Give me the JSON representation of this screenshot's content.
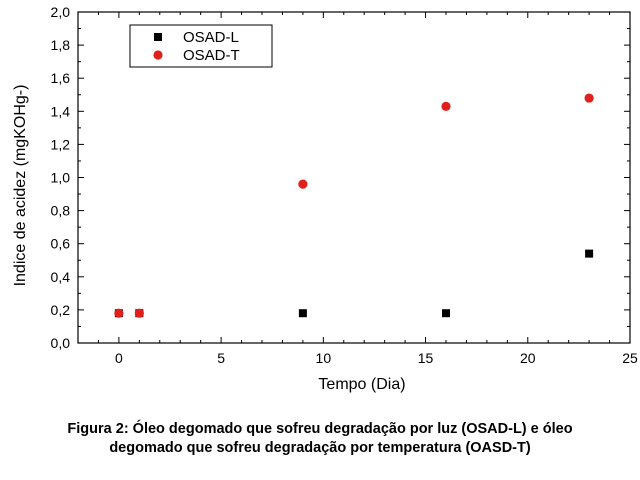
{
  "chart_data": {
    "type": "scatter",
    "xlabel": "Tempo (Dia)",
    "ylabel": "Indice de acidez (mgKOHg-)",
    "xlim": [
      -2,
      25
    ],
    "ylim": [
      0,
      2.0
    ],
    "xticks": [
      0,
      5,
      10,
      15,
      20,
      25
    ],
    "xtick_labels": [
      "0",
      "5",
      "10",
      "15",
      "20",
      "25"
    ],
    "yticks": [
      0,
      0.2,
      0.4,
      0.6,
      0.8,
      1.0,
      1.2,
      1.4,
      1.6,
      1.8,
      2.0
    ],
    "ytick_labels": [
      "0,0",
      "0,2",
      "0,4",
      "0,6",
      "0,8",
      "1,0",
      "1,2",
      "1,4",
      "1,6",
      "1,8",
      "2,0"
    ],
    "grid": false,
    "legend_position": "top-left",
    "series": [
      {
        "name": "OSAD-L",
        "marker": "square",
        "color": "#000000",
        "x": [
          0,
          1,
          9,
          16,
          23
        ],
        "y": [
          0.18,
          0.18,
          0.18,
          0.18,
          0.54
        ]
      },
      {
        "name": "OSAD-T",
        "marker": "circle",
        "color": "#e0201b",
        "x": [
          0,
          1,
          9,
          16,
          23
        ],
        "y": [
          0.18,
          0.18,
          0.96,
          1.43,
          1.48
        ]
      }
    ]
  },
  "caption": {
    "line1": "Figura 2: Óleo degomado que sofreu degradação por luz (OSAD-L) e óleo",
    "line2": "degomado que sofreu degradação por temperatura (OASD-T)"
  }
}
